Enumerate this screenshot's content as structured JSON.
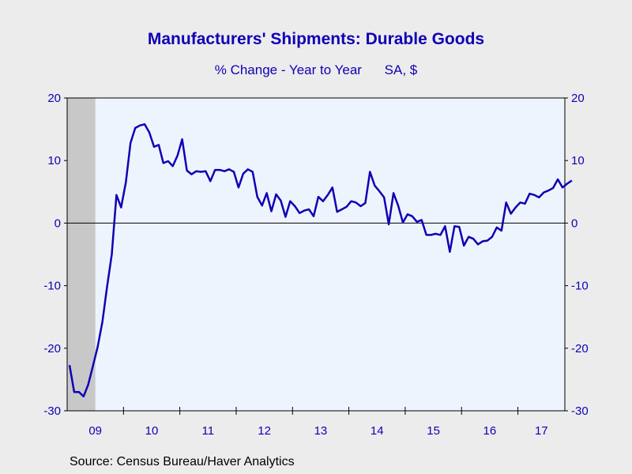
{
  "chart_data": {
    "type": "line",
    "title": "Manufacturers' Shipments: Durable Goods",
    "subtitle_parts": [
      "% Change - Year to Year",
      "SA, $"
    ],
    "source": "Source:  Census Bureau/Haver Analytics",
    "ylim": [
      -30,
      20
    ],
    "yticks": [
      20,
      10,
      0,
      -10,
      -20,
      -30
    ],
    "ytick_labels": [
      "20",
      "10",
      "0",
      "-10",
      "-20",
      "-30"
    ],
    "x_start": "2009-01",
    "x_end": "2017-10",
    "xtick_labels": [
      "09",
      "10",
      "11",
      "12",
      "13",
      "14",
      "15",
      "16",
      "17"
    ],
    "recession_shade": {
      "start": "2009-01",
      "end": "2009-06",
      "color": "#c8c8c8"
    },
    "zero_line": true,
    "grid": false,
    "line_color": "#0f00b4",
    "plot_bg": "#eef4fe",
    "series": [
      {
        "values": [
          -22.7,
          -27.0,
          -27.0,
          -27.7,
          -25.8,
          -22.8,
          -19.8,
          -15.8,
          -10.2,
          -5.0,
          4.5,
          2.5,
          6.5,
          12.8,
          15.2,
          15.6,
          15.8,
          14.5,
          12.2,
          12.5,
          9.6,
          9.9,
          9.1,
          10.8,
          13.4,
          8.4,
          7.8,
          8.3,
          8.2,
          8.3,
          6.7,
          8.5,
          8.5,
          8.3,
          8.6,
          8.2,
          5.7,
          7.9,
          8.6,
          8.2,
          4.2,
          2.8,
          4.8,
          1.9,
          4.6,
          3.6,
          1.0,
          3.5,
          2.7,
          1.6,
          2.0,
          2.2,
          1.1,
          4.2,
          3.5,
          4.5,
          5.7,
          1.8,
          2.2,
          2.6,
          3.5,
          3.3,
          2.7,
          3.2,
          8.2,
          6.0,
          5.1,
          4.1,
          -0.2,
          4.8,
          2.8,
          0.1,
          1.4,
          1.1,
          0.2,
          0.5,
          -1.9,
          -1.9,
          -1.7,
          -1.9,
          -0.5,
          -4.6,
          -0.5,
          -0.6,
          -3.6,
          -2.2,
          -2.5,
          -3.4,
          -2.9,
          -2.8,
          -2.2,
          -0.7,
          -1.2,
          3.3,
          1.5,
          2.5,
          3.3,
          3.1,
          4.7,
          4.5,
          4.1,
          4.9,
          5.2,
          5.6,
          7.0,
          5.7,
          6.3,
          6.8
        ]
      }
    ]
  }
}
